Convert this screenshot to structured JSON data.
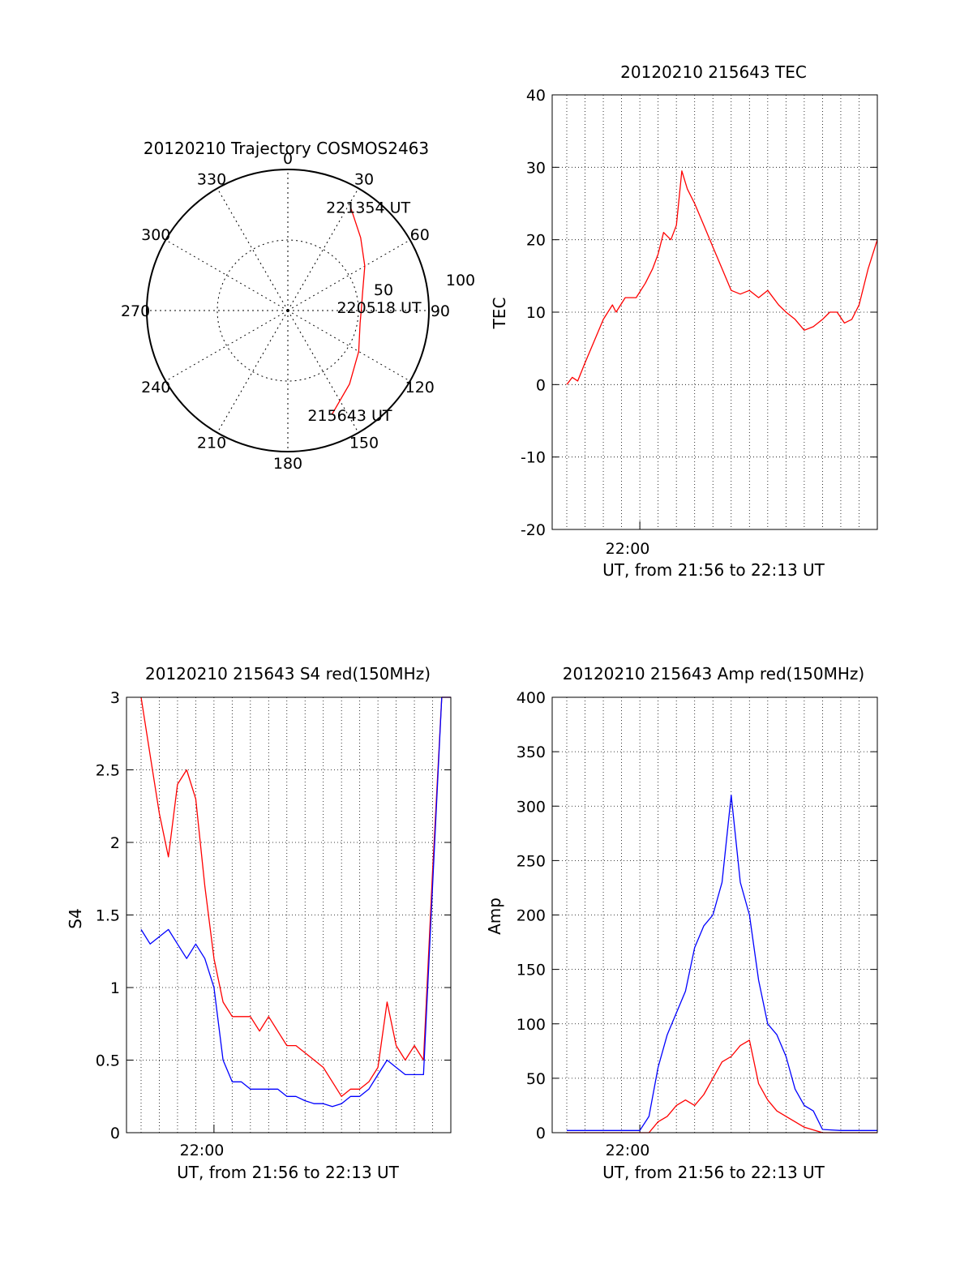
{
  "colors": {
    "red": "#ff0000",
    "blue": "#0000ff",
    "grid": "#000000"
  },
  "chart_data": [
    {
      "id": "trajectory",
      "type": "polar",
      "title": "20120210 Trajectory COSMOS2463",
      "azimuth_labels": [
        "0",
        "30",
        "60",
        "90",
        "120",
        "150",
        "180",
        "210",
        "240",
        "270",
        "300",
        "330"
      ],
      "radial_labels": [
        "50",
        "100"
      ],
      "rlim": [
        0,
        100
      ],
      "grid": true,
      "track": {
        "color": "red",
        "points": [
          {
            "az": 157,
            "zenith": 80
          },
          {
            "az": 140,
            "zenith": 68
          },
          {
            "az": 120,
            "zenith": 58
          },
          {
            "az": 100,
            "zenith": 52
          },
          {
            "az": 90,
            "zenith": 52
          },
          {
            "az": 75,
            "zenith": 55
          },
          {
            "az": 60,
            "zenith": 63
          },
          {
            "az": 45,
            "zenith": 73
          },
          {
            "az": 31,
            "zenith": 86
          }
        ],
        "annotations": [
          {
            "text": "221354 UT",
            "az": 31,
            "zenith": 86
          },
          {
            "text": "220518 UT",
            "az": 90,
            "zenith": 52
          },
          {
            "text": "215643 UT",
            "az": 157,
            "zenith": 80
          }
        ]
      }
    },
    {
      "id": "tec",
      "type": "line",
      "title": "20120210 215643 TEC",
      "ylabel": "TEC",
      "xlabel": "UT, from 21:56 to 22:13 UT",
      "x_tick_labels": [
        "22:00"
      ],
      "ylim": [
        -20,
        40
      ],
      "y_ticks": [
        -20,
        -10,
        0,
        10,
        20,
        30,
        40
      ],
      "grid": true,
      "series": [
        {
          "color": "red",
          "x": [
            0.0,
            0.3,
            0.6,
            1.0,
            1.5,
            2.0,
            2.5,
            2.7,
            3.2,
            3.8,
            4.3,
            4.7,
            5.0,
            5.3,
            5.7,
            6.0,
            6.3,
            6.6,
            7.0,
            7.5,
            8.0,
            8.5,
            9.0,
            9.5,
            10.0,
            10.5,
            11.0,
            11.6,
            12.0,
            12.5,
            13.0,
            13.5,
            14.0,
            14.4,
            14.8,
            15.2,
            15.6,
            16.0,
            16.5,
            17.0
          ],
          "y": [
            0,
            1,
            0.5,
            3,
            6,
            9,
            11,
            10,
            12,
            12,
            14,
            16,
            18,
            21,
            20,
            22,
            29.5,
            27,
            25,
            22,
            19,
            16,
            13,
            12.5,
            13,
            12,
            13,
            11,
            10,
            9,
            7.5,
            8,
            9,
            10,
            10,
            8.5,
            9,
            11,
            16,
            20
          ]
        }
      ]
    },
    {
      "id": "s4",
      "type": "line",
      "title": "20120210 215643 S4 red(150MHz)",
      "ylabel": "S4",
      "xlabel": "UT, from 21:56 to 22:13 UT",
      "x_tick_labels": [
        "22:00"
      ],
      "ylim": [
        0,
        3
      ],
      "y_ticks": [
        0,
        0.5,
        1,
        1.5,
        2,
        2.5,
        3
      ],
      "grid": true,
      "series": [
        {
          "color": "red",
          "x": [
            0.0,
            0.5,
            1.0,
            1.5,
            2.0,
            2.5,
            3.0,
            3.5,
            4.0,
            4.5,
            5.0,
            5.5,
            6.0,
            6.5,
            7.0,
            7.5,
            8.0,
            8.5,
            9.0,
            9.5,
            10.0,
            10.5,
            11.0,
            11.5,
            12.0,
            12.5,
            13.0,
            13.5,
            14.0,
            14.5,
            15.0,
            15.5,
            16.0,
            16.5,
            17.0
          ],
          "y": [
            3.0,
            2.6,
            2.2,
            1.9,
            2.4,
            2.5,
            2.3,
            1.7,
            1.2,
            0.9,
            0.8,
            0.8,
            0.8,
            0.7,
            0.8,
            0.7,
            0.6,
            0.6,
            0.55,
            0.5,
            0.45,
            0.35,
            0.25,
            0.3,
            0.3,
            0.35,
            0.45,
            0.9,
            0.6,
            0.5,
            0.6,
            0.5,
            1.8,
            3.0,
            3.0
          ]
        },
        {
          "color": "blue",
          "x": [
            0.0,
            0.5,
            1.0,
            1.5,
            2.0,
            2.5,
            3.0,
            3.5,
            4.0,
            4.5,
            5.0,
            5.5,
            6.0,
            6.5,
            7.0,
            7.5,
            8.0,
            8.5,
            9.0,
            9.5,
            10.0,
            10.5,
            11.0,
            11.5,
            12.0,
            12.5,
            13.0,
            13.5,
            14.0,
            14.5,
            15.0,
            15.5,
            16.0,
            16.5,
            17.0
          ],
          "y": [
            1.4,
            1.3,
            1.35,
            1.4,
            1.3,
            1.2,
            1.3,
            1.2,
            1.0,
            0.5,
            0.35,
            0.35,
            0.3,
            0.3,
            0.3,
            0.3,
            0.25,
            0.25,
            0.22,
            0.2,
            0.2,
            0.18,
            0.2,
            0.25,
            0.25,
            0.3,
            0.4,
            0.5,
            0.45,
            0.4,
            0.4,
            0.4,
            1.7,
            3.0,
            3.0
          ]
        }
      ]
    },
    {
      "id": "amp",
      "type": "line",
      "title": "20120210 215643 Amp red(150MHz)",
      "ylabel": "Amp",
      "xlabel": "UT, from 21:56 to 22:13 UT",
      "x_tick_labels": [
        "22:00"
      ],
      "ylim": [
        0,
        400
      ],
      "y_ticks": [
        0,
        50,
        100,
        150,
        200,
        250,
        300,
        350,
        400
      ],
      "grid": true,
      "series": [
        {
          "color": "blue",
          "x": [
            0.0,
            1.0,
            2.0,
            3.0,
            4.0,
            4.5,
            5.0,
            5.5,
            6.0,
            6.5,
            7.0,
            7.5,
            8.0,
            8.5,
            9.0,
            9.5,
            10.0,
            10.5,
            11.0,
            11.5,
            12.0,
            12.5,
            13.0,
            13.5,
            14.0,
            15.0,
            16.0,
            17.0
          ],
          "y": [
            2,
            2,
            2,
            2,
            2,
            15,
            60,
            90,
            110,
            130,
            170,
            190,
            200,
            230,
            310,
            230,
            200,
            140,
            100,
            90,
            70,
            40,
            25,
            20,
            3,
            2,
            2,
            2
          ]
        },
        {
          "color": "red",
          "x": [
            0.0,
            4.0,
            4.5,
            5.0,
            5.5,
            6.0,
            6.5,
            7.0,
            7.5,
            8.0,
            8.5,
            9.0,
            9.5,
            10.0,
            10.5,
            11.0,
            11.5,
            12.0,
            12.5,
            13.0,
            14.0,
            17.0
          ],
          "y": [
            0,
            0,
            0,
            10,
            15,
            25,
            30,
            25,
            35,
            50,
            65,
            70,
            80,
            85,
            45,
            30,
            20,
            15,
            10,
            5,
            0,
            0
          ]
        }
      ]
    }
  ]
}
